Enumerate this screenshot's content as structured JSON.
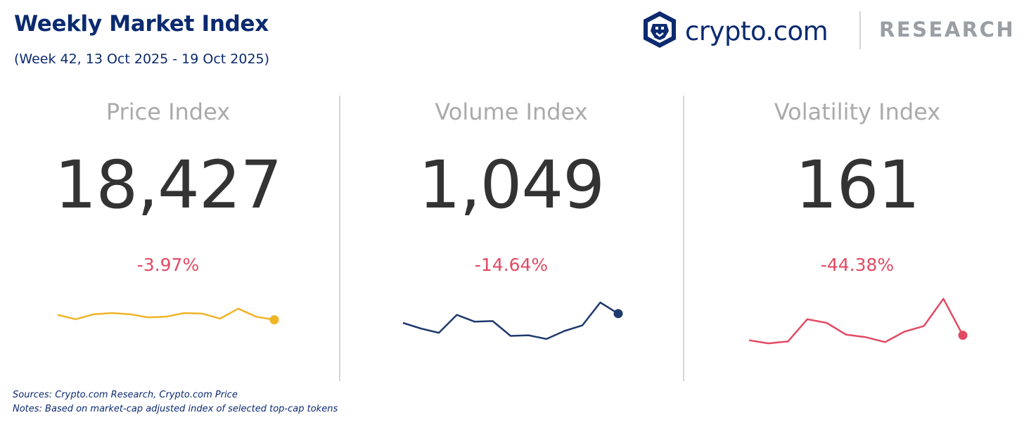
{
  "header": {
    "title": "Weekly Market Index",
    "subtitle": "(Week 42, 13 Oct 2025 - 19 Oct 2025)"
  },
  "brand": {
    "name": "crypto.com",
    "tagline": "RESEARCH",
    "logo_icon": "crypto-com-lion-shield-icon"
  },
  "colors": {
    "price": "#f0b429",
    "volume": "#1f3a6e",
    "volatility": "#e14a63",
    "change": "#e14a63"
  },
  "footer": {
    "sources": "Sources: Crypto.com Research,  Crypto.com Price",
    "notes": "Notes: Based on market-cap adjusted index of selected top-cap tokens"
  },
  "chart_data": [
    {
      "type": "line",
      "title": "Price Index",
      "value_label": "18,427",
      "change_label": "-3.97%",
      "series": [
        {
          "values": [
            55,
            48,
            56,
            58,
            56,
            51,
            52,
            58,
            57,
            49,
            65,
            52,
            47
          ]
        }
      ],
      "ylim": [
        0,
        100
      ]
    },
    {
      "type": "line",
      "title": "Volume Index",
      "value_label": "1,049",
      "change_label": "-14.64%",
      "series": [
        {
          "values": [
            42,
            33,
            26,
            55,
            44,
            45,
            21,
            22,
            16,
            29,
            38,
            75,
            57
          ]
        }
      ],
      "ylim": [
        0,
        100
      ]
    },
    {
      "type": "line",
      "title": "Volatility Index",
      "value_label": "161",
      "change_label": "-44.38%",
      "series": [
        {
          "values": [
            14,
            9,
            12,
            48,
            42,
            23,
            19,
            11,
            28,
            37,
            81,
            22
          ]
        }
      ],
      "ylim": [
        0,
        100
      ]
    }
  ]
}
